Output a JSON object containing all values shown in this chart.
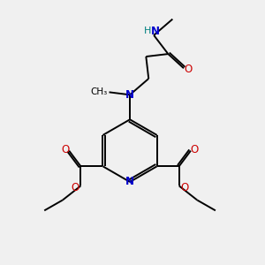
{
  "bg_color": "#f0f0f0",
  "atom_colors": {
    "C": "#000000",
    "N": "#0000cc",
    "O": "#cc0000",
    "H": "#008080"
  },
  "bond_color": "#000000",
  "bond_width": 1.4,
  "figsize": [
    3.0,
    3.0
  ],
  "dpi": 100,
  "xlim": [
    0,
    10
  ],
  "ylim": [
    0,
    10
  ]
}
